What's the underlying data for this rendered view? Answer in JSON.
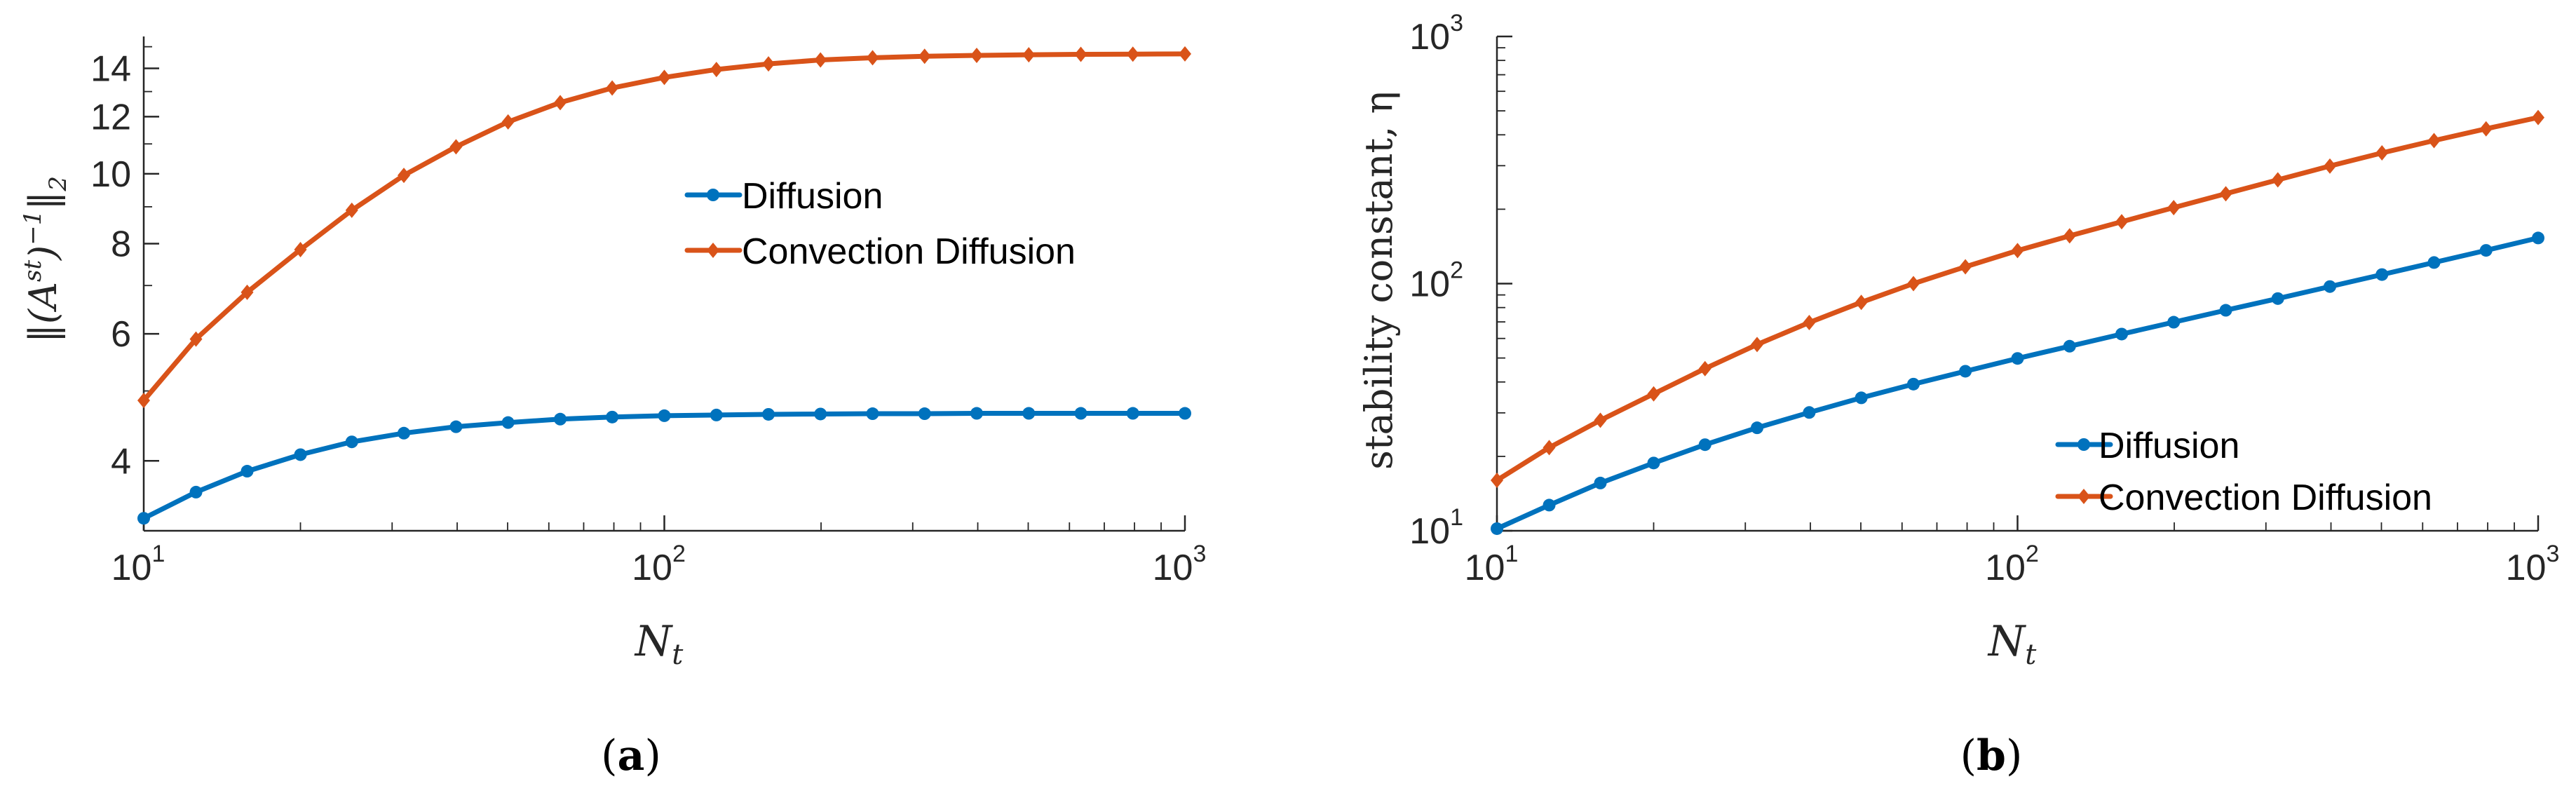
{
  "colors": {
    "diffusion": "#0072BD",
    "convection": "#D95319",
    "axis": "#262626"
  },
  "panels": [
    {
      "label_open": "(",
      "label_letter": "a",
      "label_close": ")"
    },
    {
      "label_open": "(",
      "label_letter": "b",
      "label_close": ")"
    }
  ],
  "chart_data": [
    {
      "type": "line",
      "xscale": "log",
      "yscale": "log",
      "xlabel_base": "N",
      "xlabel_sub": "t",
      "ylabel": "||(A^st)^-1||_2",
      "ylabel_parts": {
        "open": "‖(A",
        "sup": "st",
        "mid": ")",
        "sup2": "−1",
        "close": "‖",
        "sub": "2"
      },
      "xlim": [
        10,
        1000
      ],
      "ylim": [
        3.2,
        15.5
      ],
      "xticks": [
        {
          "base": "10",
          "exp": "1",
          "value": 10
        },
        {
          "base": "10",
          "exp": "2",
          "value": 100
        },
        {
          "base": "10",
          "exp": "3",
          "value": 1000
        }
      ],
      "yticks": [
        {
          "label": "4",
          "value": 4
        },
        {
          "label": "6",
          "value": 6
        },
        {
          "label": "8",
          "value": 8
        },
        {
          "label": "10",
          "value": 10
        },
        {
          "label": "12",
          "value": 12
        },
        {
          "label": "14",
          "value": 14
        }
      ],
      "legend_position": "center-right",
      "x": [
        10,
        12.6,
        15.8,
        20,
        25.1,
        31.6,
        39.8,
        50.1,
        63.1,
        79.4,
        100,
        125.9,
        158.5,
        199.5,
        251.2,
        316.2,
        398.1,
        501.2,
        631,
        794.3,
        1000
      ],
      "series": [
        {
          "name": "Diffusion",
          "color": "#0072BD",
          "marker": "circle",
          "values": [
            3.33,
            3.62,
            3.87,
            4.08,
            4.25,
            4.37,
            4.46,
            4.52,
            4.57,
            4.6,
            4.62,
            4.63,
            4.64,
            4.645,
            4.65,
            4.65,
            4.655,
            4.655,
            4.655,
            4.655,
            4.655
          ]
        },
        {
          "name": "Convection Diffusion",
          "color": "#D95319",
          "marker": "diamond",
          "values": [
            4.85,
            5.9,
            6.85,
            7.85,
            8.9,
            9.95,
            10.9,
            11.8,
            12.55,
            13.15,
            13.6,
            13.95,
            14.2,
            14.38,
            14.48,
            14.55,
            14.59,
            14.62,
            14.64,
            14.65,
            14.66
          ]
        }
      ]
    },
    {
      "type": "line",
      "xscale": "log",
      "yscale": "log",
      "xlabel_base": "N",
      "xlabel_sub": "t",
      "ylabel": "stability constant, η",
      "xlim": [
        10,
        1000
      ],
      "ylim": [
        10,
        1000
      ],
      "xticks": [
        {
          "base": "10",
          "exp": "1",
          "value": 10
        },
        {
          "base": "10",
          "exp": "2",
          "value": 100
        },
        {
          "base": "10",
          "exp": "3",
          "value": 1000
        }
      ],
      "yticks": [
        {
          "base": "10",
          "exp": "1",
          "value": 10
        },
        {
          "base": "10",
          "exp": "2",
          "value": 100
        },
        {
          "base": "10",
          "exp": "3",
          "value": 1000
        }
      ],
      "legend_position": "lower-right",
      "x": [
        10,
        12.6,
        15.8,
        20,
        25.1,
        31.6,
        39.8,
        50.1,
        63.1,
        79.4,
        100,
        125.9,
        158.5,
        199.5,
        251.2,
        316.2,
        398.1,
        501.2,
        631,
        794.3,
        1000
      ],
      "series": [
        {
          "name": "Diffusion",
          "color": "#0072BD",
          "marker": "circle",
          "values": [
            10.2,
            12.7,
            15.6,
            18.8,
            22.3,
            26.1,
            30.1,
            34.5,
            39.2,
            44.2,
            49.8,
            55.8,
            62.5,
            69.8,
            78.0,
            87.0,
            97.3,
            108.8,
            121.7,
            136.3,
            153.0
          ]
        },
        {
          "name": "Convection Diffusion",
          "color": "#D95319",
          "marker": "diamond",
          "values": [
            16.0,
            21.7,
            28.0,
            35.8,
            45.3,
            56.7,
            69.6,
            84.0,
            100.0,
            117.0,
            136.0,
            156.0,
            178.0,
            203.0,
            231.0,
            263.0,
            299.0,
            338.0,
            379.0,
            423.0,
            470.0
          ]
        }
      ]
    }
  ]
}
